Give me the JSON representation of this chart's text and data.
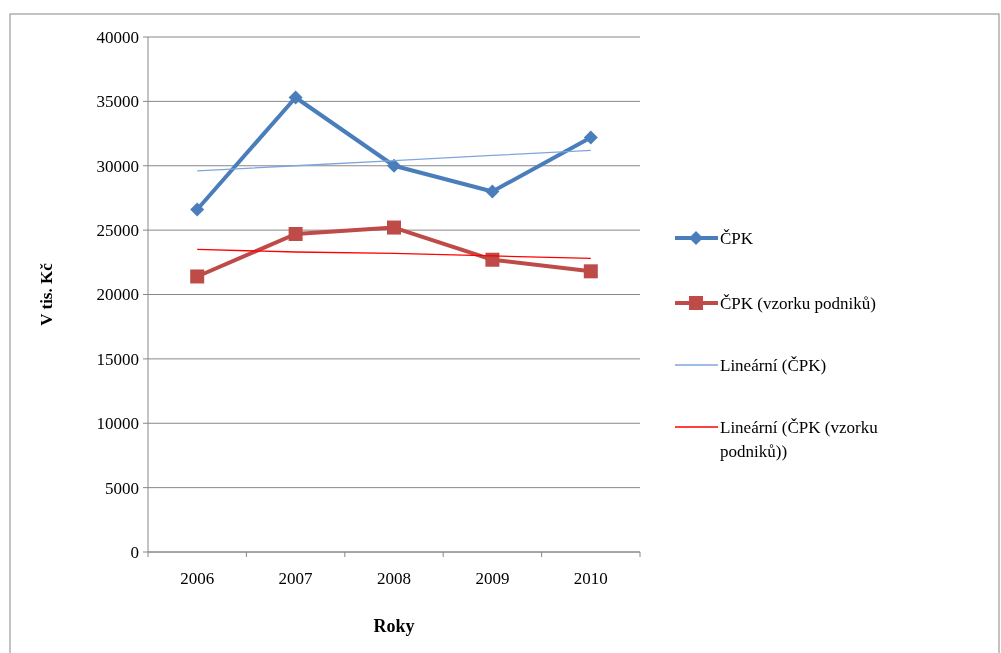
{
  "chart_data": {
    "type": "line",
    "xlabel": "Roky",
    "ylabel": "V tis. Kč",
    "categories": [
      "2006",
      "2007",
      "2008",
      "2009",
      "2010"
    ],
    "series": [
      {
        "name": "ČPK",
        "color": "#4a7ebb",
        "marker": "diamond",
        "values": [
          26600,
          35300,
          30000,
          28000,
          32200
        ]
      },
      {
        "name": "ČPK (vzorku podniků)",
        "color": "#be4b48",
        "marker": "square",
        "values": [
          21400,
          24700,
          25200,
          22700,
          21800
        ]
      },
      {
        "name": "Lineární (ČPK)",
        "color": "#7ea6dc",
        "marker": "none",
        "values": [
          29600,
          30000,
          30400,
          30800,
          31200
        ]
      },
      {
        "name": "Lineární (ČPK (vzorku podniků))",
        "color": "#ff0000",
        "marker": "none",
        "values": [
          23500,
          23300,
          23200,
          23000,
          22800
        ]
      }
    ],
    "ylim": [
      0,
      40000
    ],
    "yticks": [
      0,
      5000,
      10000,
      15000,
      20000,
      25000,
      30000,
      35000,
      40000
    ],
    "grid": "y",
    "legend": "right",
    "line_style": "solid"
  }
}
